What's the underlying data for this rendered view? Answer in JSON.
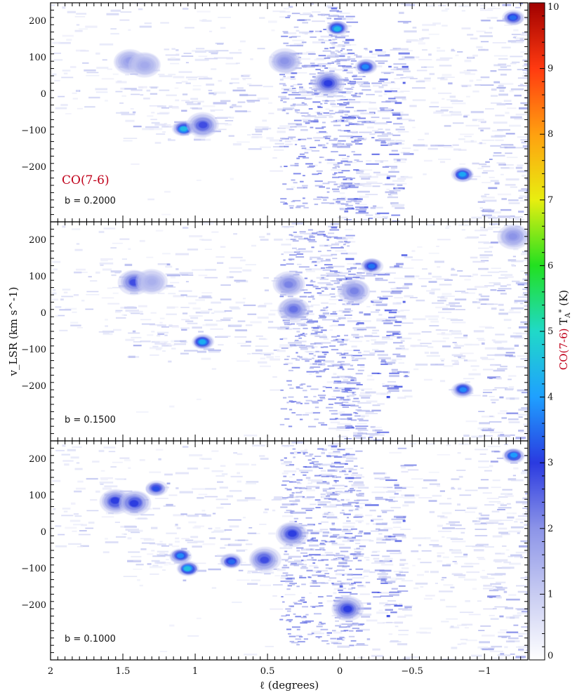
{
  "chart_data": {
    "type": "heatmap",
    "line_label": "CO(7-6)",
    "xlabel": "ℓ (degrees)",
    "ylabel": "v_LSR (km s^-1)",
    "xlim": [
      2.0,
      -1.3
    ],
    "ylim": [
      -350,
      250
    ],
    "x_ticks": [
      2,
      1.5,
      1,
      0.5,
      0,
      -0.5,
      -1
    ],
    "x_tick_labels": [
      "2",
      "1.5",
      "1",
      "0.5",
      "0",
      "−0.5",
      "−1"
    ],
    "y_ticks": [
      200,
      100,
      0,
      -100,
      -200
    ],
    "y_tick_labels": [
      "200",
      "100",
      "0",
      "−100",
      "−200"
    ],
    "colorbar": {
      "label": "CO(7-6) T_A* (K)",
      "label_main": "CO(7-6)",
      "label_sym": "T",
      "label_unit": "(K)",
      "label_color": "#c0001a",
      "range": [
        0,
        10
      ],
      "tick_values": [
        0,
        1,
        2,
        3,
        4,
        5,
        6,
        7,
        8,
        9,
        10
      ],
      "tick_labels": [
        "0",
        "1",
        "2",
        "3",
        "4",
        "5",
        "6",
        "7",
        "8",
        "9",
        "10"
      ],
      "colors": [
        "#ffffff",
        "#c8ccf2",
        "#8c94e8",
        "#2a3ae0",
        "#1fa0ff",
        "#20d9c8",
        "#22e020",
        "#e8ee10",
        "#ffa010",
        "#ff3a10",
        "#a00000"
      ]
    },
    "panels": [
      {
        "name": "b = 0.2000",
        "label": "b = 0.2000",
        "bright_blobs": [
          {
            "l": 1.45,
            "v": 90,
            "peak": 1.8
          },
          {
            "l": 1.35,
            "v": 80,
            "peak": 1.6
          },
          {
            "l": 1.08,
            "v": -95,
            "peak": 4.5
          },
          {
            "l": 0.95,
            "v": -85,
            "peak": 2.8
          },
          {
            "l": 0.38,
            "v": 90,
            "peak": 2.0
          },
          {
            "l": 0.08,
            "v": 30,
            "peak": 3.0
          },
          {
            "l": -0.18,
            "v": 75,
            "peak": 3.8
          },
          {
            "l": 0.02,
            "v": 180,
            "peak": 4.5
          },
          {
            "l": -1.2,
            "v": 210,
            "peak": 3.5
          },
          {
            "l": -0.85,
            "v": -220,
            "peak": 4.2
          }
        ]
      },
      {
        "name": "b = 0.1500",
        "label": "b = 0.1500",
        "bright_blobs": [
          {
            "l": 1.42,
            "v": 85,
            "peak": 2.8
          },
          {
            "l": 1.3,
            "v": 85,
            "peak": 1.5
          },
          {
            "l": 0.95,
            "v": -80,
            "peak": 4.3
          },
          {
            "l": 0.35,
            "v": 80,
            "peak": 2.2
          },
          {
            "l": 0.32,
            "v": 10,
            "peak": 2.4
          },
          {
            "l": -0.1,
            "v": 60,
            "peak": 2.2
          },
          {
            "l": -0.22,
            "v": 130,
            "peak": 3.6
          },
          {
            "l": -1.2,
            "v": 210,
            "peak": 2.0
          },
          {
            "l": -0.85,
            "v": -210,
            "peak": 3.8
          }
        ]
      },
      {
        "name": "b = 0.1000",
        "label": "b = 0.1000",
        "bright_blobs": [
          {
            "l": 1.55,
            "v": 85,
            "peak": 3.0
          },
          {
            "l": 1.42,
            "v": 80,
            "peak": 3.0
          },
          {
            "l": 1.27,
            "v": 120,
            "peak": 3.2
          },
          {
            "l": 1.05,
            "v": -100,
            "peak": 4.6
          },
          {
            "l": 1.1,
            "v": -65,
            "peak": 3.8
          },
          {
            "l": 0.75,
            "v": -80,
            "peak": 3.5
          },
          {
            "l": 0.52,
            "v": -75,
            "peak": 2.8
          },
          {
            "l": 0.33,
            "v": -5,
            "peak": 3.0
          },
          {
            "l": -0.05,
            "v": -210,
            "peak": 3.0
          },
          {
            "l": -1.2,
            "v": 210,
            "peak": 4.0
          }
        ]
      }
    ]
  }
}
